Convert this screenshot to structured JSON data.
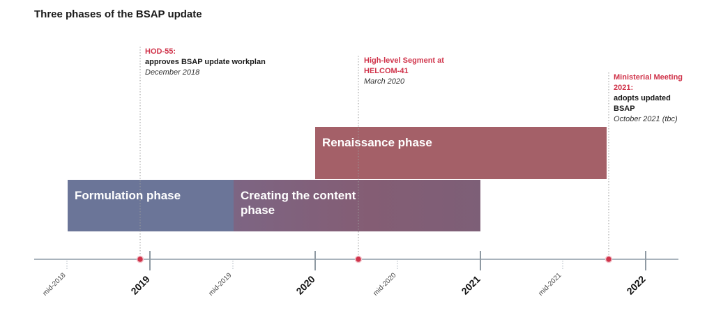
{
  "title": "Three phases of the BSAP update",
  "phases": [
    {
      "label": "Formulation phase"
    },
    {
      "label": "Creating the content phase"
    },
    {
      "label": "Renaissance phase"
    }
  ],
  "milestones": [
    {
      "head": "HOD-55:",
      "desc": "approves BSAP update workplan",
      "date": "December 2018"
    },
    {
      "head": "High-level Segment at HELCOM-41",
      "desc": "",
      "date": "March 2020"
    },
    {
      "head": "Ministerial Meeting 2021:",
      "desc": "adopts updated BSAP",
      "date": "October 2021 (tbc)"
    }
  ],
  "axis": {
    "ticks": [
      "mid-2018",
      "2019",
      "mid-2019",
      "2020",
      "mid-2020",
      "2021",
      "mid-2021",
      "2022"
    ]
  },
  "colors": {
    "formulation": "#6b7598",
    "creating": "#845d74",
    "renaissance": "#a46068",
    "milestone": "#d0334a",
    "axis": "#a9b3bc"
  }
}
